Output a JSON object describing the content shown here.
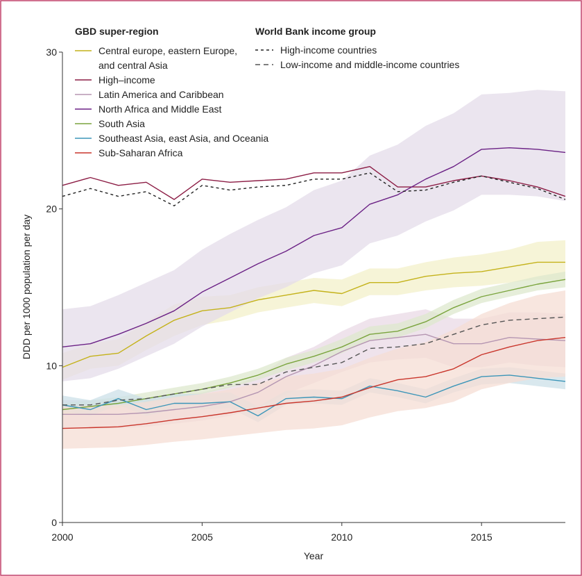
{
  "chart_data": {
    "type": "line",
    "xlabel": "Year",
    "ylabel": "DDD per 1000 population per day",
    "xlim": [
      2000,
      2018
    ],
    "ylim": [
      0,
      30
    ],
    "x_ticks": [
      "2000",
      "2005",
      "2010",
      "2015"
    ],
    "y_ticks": [
      "0",
      "10",
      "20",
      "30"
    ],
    "grid": false,
    "x": [
      2000,
      2001,
      2002,
      2003,
      2004,
      2005,
      2006,
      2007,
      2008,
      2009,
      2010,
      2011,
      2012,
      2013,
      2014,
      2015,
      2016,
      2017,
      2018
    ],
    "legend_left_title": "GBD super-region",
    "legend_right_title": "World Bank income group",
    "series": [
      {
        "key": "ceeca",
        "name": "Central europe, eastern Europe, and central Asia",
        "legend_lines": [
          "Central europe, eastern Europe,",
          "and central Asia"
        ],
        "color": "#c4b21a",
        "band_color": "#f3f0c9",
        "values": [
          9.9,
          10.6,
          10.8,
          11.9,
          12.9,
          13.5,
          13.7,
          14.2,
          14.5,
          14.8,
          14.6,
          15.3,
          15.3,
          15.7,
          15.9,
          16.0,
          16.3,
          16.6,
          16.6
        ],
        "lower": [
          9.1,
          9.8,
          10.0,
          11.0,
          11.9,
          12.6,
          12.9,
          13.4,
          13.7,
          14.0,
          13.8,
          14.5,
          14.5,
          14.8,
          15.0,
          15.1,
          15.3,
          15.5,
          15.4
        ],
        "upper": [
          10.8,
          11.4,
          11.7,
          12.8,
          13.9,
          14.4,
          14.5,
          15.0,
          15.3,
          15.6,
          15.5,
          16.2,
          16.2,
          16.6,
          16.9,
          17.1,
          17.4,
          17.9,
          18.0
        ]
      },
      {
        "key": "high",
        "name": "High–income",
        "legend_lines": [
          "High–income"
        ],
        "color": "#8c1d45",
        "band_color": null,
        "values": [
          21.5,
          22.0,
          21.5,
          21.7,
          20.6,
          21.9,
          21.7,
          21.8,
          21.9,
          22.3,
          22.3,
          22.7,
          21.4,
          21.4,
          21.8,
          22.1,
          21.8,
          21.4,
          20.8
        ]
      },
      {
        "key": "lac",
        "name": "Latin America and Caribbean",
        "legend_lines": [
          "Latin America and Caribbean"
        ],
        "color": "#b596b2",
        "band_color": "#e9d9e6",
        "values": [
          6.9,
          6.9,
          6.9,
          7.0,
          7.2,
          7.4,
          7.7,
          8.3,
          9.3,
          10.0,
          10.9,
          11.6,
          11.8,
          12.0,
          11.4,
          11.4,
          11.8,
          11.7,
          11.6
        ],
        "lower": [
          6.0,
          6.0,
          6.0,
          6.1,
          6.3,
          6.5,
          6.8,
          7.3,
          8.2,
          8.9,
          9.6,
          10.2,
          10.4,
          10.5,
          9.9,
          9.9,
          10.2,
          10.0,
          9.9
        ],
        "upper": [
          7.8,
          7.8,
          7.8,
          7.9,
          8.1,
          8.3,
          8.7,
          9.3,
          10.5,
          11.2,
          12.2,
          13.0,
          13.3,
          13.6,
          13.0,
          13.0,
          13.4,
          13.4,
          13.3
        ]
      },
      {
        "key": "namea",
        "name": "North Africa and Middle East",
        "legend_lines": [
          "North Africa and Middle East"
        ],
        "color": "#6b2185",
        "band_color": "#e4dcea",
        "values": [
          11.2,
          11.4,
          12.0,
          12.7,
          13.5,
          14.7,
          15.6,
          16.5,
          17.3,
          18.3,
          18.8,
          20.3,
          20.9,
          21.9,
          22.7,
          23.8,
          23.9,
          23.8,
          23.6
        ],
        "lower": [
          9.0,
          9.2,
          9.8,
          10.6,
          11.4,
          12.5,
          13.4,
          14.3,
          15.0,
          15.9,
          16.4,
          17.8,
          18.3,
          19.2,
          19.9,
          20.9,
          20.9,
          20.8,
          20.5
        ],
        "upper": [
          13.6,
          13.8,
          14.5,
          15.3,
          16.1,
          17.4,
          18.4,
          19.3,
          20.1,
          21.2,
          21.8,
          23.4,
          24.1,
          25.3,
          26.1,
          27.3,
          27.4,
          27.6,
          27.5
        ]
      },
      {
        "key": "sasia",
        "name": "South Asia",
        "legend_lines": [
          "South Asia"
        ],
        "color": "#7aa43d",
        "band_color": "#dde8cd",
        "values": [
          7.2,
          7.4,
          7.6,
          7.9,
          8.2,
          8.5,
          8.9,
          9.4,
          10.1,
          10.6,
          11.2,
          12.0,
          12.2,
          12.8,
          13.7,
          14.4,
          14.8,
          15.2,
          15.5
        ],
        "lower": [
          6.9,
          7.1,
          7.3,
          7.6,
          7.9,
          8.2,
          8.6,
          9.1,
          9.7,
          10.2,
          10.8,
          11.6,
          11.8,
          12.4,
          13.3,
          14.0,
          14.4,
          14.8,
          15.0
        ],
        "upper": [
          7.6,
          7.8,
          8.0,
          8.3,
          8.6,
          8.9,
          9.3,
          9.8,
          10.5,
          11.0,
          11.7,
          12.5,
          12.7,
          13.3,
          14.2,
          14.9,
          15.3,
          15.7,
          16.0
        ]
      },
      {
        "key": "seao",
        "name": "Southeast Asia, east Asia, and Oceania",
        "legend_lines": [
          "Southeast Asia, east Asia, and Oceania"
        ],
        "color": "#3b95b8",
        "band_color": "#cce0e8",
        "values": [
          7.5,
          7.2,
          7.9,
          7.2,
          7.6,
          7.6,
          7.7,
          6.8,
          7.9,
          8.0,
          7.9,
          8.7,
          8.4,
          8.0,
          8.7,
          9.3,
          9.4,
          9.2,
          9.0
        ],
        "lower": [
          7.1,
          6.8,
          7.5,
          6.8,
          7.2,
          7.2,
          7.3,
          6.4,
          7.5,
          7.6,
          7.5,
          8.3,
          8.0,
          7.6,
          8.3,
          8.8,
          8.9,
          8.7,
          8.5
        ],
        "upper": [
          8.1,
          7.8,
          8.5,
          7.9,
          8.2,
          8.2,
          8.3,
          7.4,
          8.4,
          8.5,
          8.4,
          9.2,
          8.9,
          8.5,
          9.2,
          9.8,
          9.9,
          9.7,
          9.5
        ]
      },
      {
        "key": "ssa",
        "name": "Sub-Saharan Africa",
        "legend_lines": [
          "Sub-Saharan Africa"
        ],
        "color": "#c9352b",
        "band_color": "#f5ddd4",
        "values": [
          6.0,
          6.05,
          6.1,
          6.3,
          6.55,
          6.75,
          7.0,
          7.3,
          7.6,
          7.75,
          8.0,
          8.6,
          9.1,
          9.3,
          9.8,
          10.7,
          11.2,
          11.6,
          11.8
        ],
        "lower": [
          4.7,
          4.75,
          4.8,
          4.95,
          5.15,
          5.3,
          5.5,
          5.7,
          5.9,
          6.0,
          6.2,
          6.7,
          7.1,
          7.3,
          7.7,
          8.5,
          8.9,
          9.2,
          9.3
        ],
        "upper": [
          7.4,
          7.45,
          7.5,
          7.7,
          8.0,
          8.2,
          8.5,
          8.9,
          9.3,
          9.5,
          9.8,
          10.5,
          11.1,
          11.5,
          12.3,
          13.3,
          14.0,
          14.5,
          14.8
        ]
      },
      {
        "key": "hic",
        "name": "High-income countries",
        "legend_lines": [
          "High-income countries"
        ],
        "color": "#222222",
        "dash": "4,4",
        "values": [
          20.8,
          21.3,
          20.8,
          21.1,
          20.2,
          21.5,
          21.2,
          21.4,
          21.5,
          21.9,
          21.9,
          22.3,
          21.1,
          21.2,
          21.7,
          22.1,
          21.7,
          21.3,
          20.6
        ]
      },
      {
        "key": "lmic",
        "name": "Low-income and middle-income countries",
        "legend_lines": [
          "Low-income and middle-income countries"
        ],
        "color": "#555555",
        "dash": "7,5",
        "values": [
          7.5,
          7.5,
          7.8,
          7.9,
          8.2,
          8.5,
          8.8,
          8.8,
          9.6,
          9.9,
          10.2,
          11.1,
          11.2,
          11.4,
          12.0,
          12.6,
          12.9,
          13.0,
          13.1
        ]
      }
    ]
  }
}
